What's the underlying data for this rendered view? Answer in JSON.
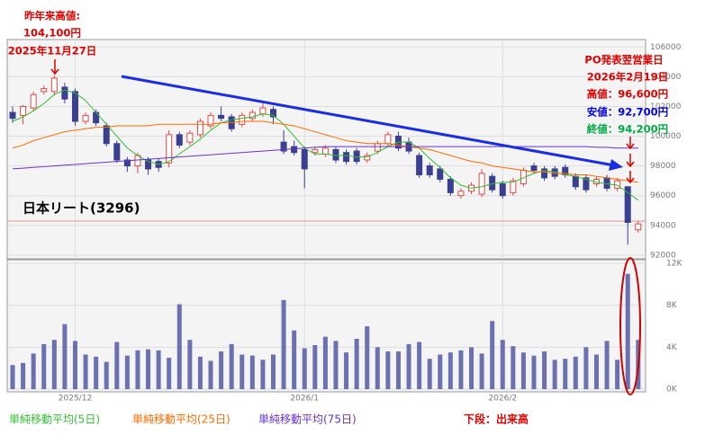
{
  "chart_data": [
    {
      "type": "candlestick",
      "title": "日本リート(3296)",
      "ylim": [
        91750,
        106500
      ],
      "yticks": [
        92000,
        94000,
        96000,
        98000,
        100000,
        102000,
        104000,
        106000
      ],
      "grid": true,
      "up_color": "#e04848",
      "down_color": "#3b3f8f",
      "open": [
        101600,
        101400,
        101900,
        103000,
        103000,
        103300,
        103000,
        101000,
        101600,
        100700,
        99500,
        98400,
        98000,
        98400,
        98300,
        98200,
        100100,
        99600,
        100100,
        100700,
        101400,
        101300,
        100800,
        101200,
        101500,
        101800,
        99600,
        99300,
        99100,
        98900,
        98800,
        99100,
        98900,
        99000,
        98400,
        99000,
        99500,
        100000,
        99600,
        98700,
        98000,
        97800,
        97100,
        96000,
        96300,
        96100,
        97300,
        96800,
        96200,
        96800,
        98000,
        97800,
        97800,
        97900,
        97300,
        97200,
        96800,
        97200,
        96500,
        96600,
        93700
      ],
      "high": [
        102000,
        102100,
        103000,
        103400,
        104100,
        103600,
        103200,
        101600,
        101800,
        100900,
        99700,
        98600,
        98900,
        98600,
        98500,
        100400,
        100300,
        100400,
        101200,
        101600,
        102000,
        101500,
        101600,
        101800,
        102200,
        102000,
        100400,
        99700,
        99300,
        99300,
        99400,
        99300,
        99100,
        99200,
        98900,
        99700,
        100300,
        100300,
        99900,
        98900,
        98200,
        98000,
        97300,
        96500,
        96900,
        97800,
        97500,
        97000,
        97200,
        97900,
        98200,
        98000,
        98000,
        98100,
        97500,
        97400,
        97300,
        97400,
        97200,
        96600,
        94300
      ],
      "low": [
        100900,
        100800,
        101700,
        102800,
        102800,
        102200,
        100700,
        100800,
        100700,
        99300,
        98200,
        97600,
        97500,
        97400,
        97600,
        97900,
        99200,
        99400,
        99900,
        100500,
        101000,
        100300,
        100600,
        101000,
        101300,
        100800,
        98800,
        98700,
        96500,
        98700,
        98600,
        98200,
        98100,
        98100,
        98200,
        98800,
        99300,
        99000,
        98800,
        97200,
        97200,
        96900,
        96000,
        95800,
        96100,
        95900,
        96200,
        95800,
        96000,
        96600,
        97500,
        97000,
        97100,
        97200,
        96400,
        96200,
        96600,
        96300,
        96300,
        92700,
        93500
      ],
      "close": [
        101200,
        102000,
        102800,
        103200,
        103900,
        102500,
        101000,
        101400,
        100900,
        99500,
        98400,
        98000,
        98700,
        97800,
        97900,
        100100,
        99400,
        100200,
        101000,
        101400,
        101200,
        100500,
        101400,
        101600,
        101900,
        101300,
        99000,
        98900,
        97800,
        99100,
        99200,
        98400,
        98300,
        98300,
        98700,
        99500,
        100100,
        99200,
        99000,
        97400,
        97400,
        97100,
        96200,
        96300,
        96700,
        97500,
        96400,
        96000,
        97000,
        97700,
        97700,
        97200,
        97300,
        97400,
        96600,
        96400,
        97100,
        96500,
        97000,
        94200,
        94100
      ],
      "series": [
        {
          "name": "単純移動平均(5日)",
          "color": "#33bb33",
          "values": [
            101000,
            101300,
            101700,
            102200,
            102800,
            103100,
            102900,
            102400,
            101600,
            100800,
            100000,
            99200,
            98700,
            98300,
            98100,
            98300,
            98800,
            99300,
            99800,
            100400,
            100900,
            101100,
            101200,
            101300,
            101500,
            101400,
            100800,
            100000,
            99200,
            98800,
            98800,
            98700,
            98700,
            98600,
            98600,
            98900,
            99300,
            99600,
            99600,
            99200,
            98500,
            97900,
            97200,
            96700,
            96500,
            96600,
            96800,
            96900,
            96900,
            97200,
            97500,
            97700,
            97600,
            97400,
            97300,
            97100,
            96900,
            96800,
            96700,
            96200,
            95700
          ]
        },
        {
          "name": "単純移動平均(25日)",
          "color": "#ff6a00",
          "values": [
            99200,
            99400,
            99700,
            99900,
            100100,
            100300,
            100400,
            100500,
            100600,
            100600,
            100700,
            100700,
            100700,
            100700,
            100800,
            100800,
            100800,
            100800,
            100800,
            100800,
            100900,
            100900,
            101000,
            101000,
            101000,
            100900,
            100800,
            100700,
            100500,
            100300,
            100100,
            99900,
            99700,
            99600,
            99500,
            99500,
            99500,
            99400,
            99300,
            99200,
            99100,
            98900,
            98700,
            98500,
            98300,
            98200,
            98000,
            97900,
            97800,
            97700,
            97600,
            97600,
            97500,
            97500,
            97400,
            97400,
            97300,
            97200,
            97100,
            97000,
            96900
          ]
        },
        {
          "name": "単純移動平均(75日)",
          "color": "#6633cc",
          "values": [
            97800,
            97850,
            97900,
            97950,
            98000,
            98050,
            98100,
            98150,
            98200,
            98250,
            98300,
            98350,
            98400,
            98450,
            98500,
            98550,
            98600,
            98650,
            98700,
            98750,
            98800,
            98850,
            98900,
            98950,
            99000,
            99050,
            99100,
            99150,
            99200,
            99250,
            99300,
            99300,
            99300,
            99300,
            99300,
            99300,
            99300,
            99300,
            99300,
            99300,
            99300,
            99300,
            99300,
            99300,
            99300,
            99300,
            99300,
            99300,
            99300,
            99300,
            99300,
            99300,
            99300,
            99300,
            99300,
            99300,
            99250,
            99250,
            99200,
            99200,
            99200
          ]
        }
      ],
      "annotations": [
        {
          "text": "昨年来高値:",
          "color": "#e00000"
        },
        {
          "text": "104,100円",
          "color": "#e00000"
        },
        {
          "text": "2025年11月27日",
          "color": "#e00000"
        },
        {
          "text": "PO発表翌営業日",
          "color": "#e00000"
        },
        {
          "text": "2026年2月19日",
          "color": "#e00000"
        },
        {
          "text": "高値：96,600円",
          "color": "#e00000"
        },
        {
          "text": "安値：92,700円",
          "color": "#0000ee"
        },
        {
          "text": "終値：94,200円",
          "color": "#00aa44"
        }
      ]
    },
    {
      "type": "bar",
      "title": "下段：出来高",
      "title_color": "#e00000",
      "color": "#6b70b0",
      "categories": [
        null,
        null,
        null,
        null,
        null,
        null,
        "2025/12",
        null,
        null,
        null,
        null,
        null,
        null,
        null,
        null,
        null,
        null,
        null,
        null,
        null,
        null,
        null,
        null,
        null,
        null,
        null,
        null,
        null,
        "2026/1",
        null,
        null,
        null,
        null,
        null,
        null,
        null,
        null,
        null,
        null,
        null,
        null,
        null,
        null,
        null,
        null,
        null,
        null,
        "2026/2",
        null,
        null,
        null,
        null,
        null,
        null,
        null,
        null,
        null,
        null,
        null,
        null,
        null
      ],
      "values": [
        2300,
        2500,
        3400,
        4300,
        4700,
        6200,
        4600,
        3300,
        3100,
        2600,
        4500,
        3200,
        3700,
        3800,
        3700,
        3000,
        8100,
        4700,
        3100,
        2700,
        3600,
        4300,
        3300,
        3200,
        2800,
        3300,
        8500,
        5600,
        3900,
        4200,
        5000,
        4600,
        3500,
        4800,
        6000,
        4000,
        3600,
        3600,
        4300,
        4500,
        2900,
        3300,
        3500,
        3700,
        4000,
        3400,
        6500,
        4700,
        4100,
        3500,
        3200,
        3600,
        2800,
        2900,
        3100,
        4000,
        3300,
        4600,
        2800,
        11000,
        4700
      ],
      "ylim": [
        0,
        12000
      ],
      "yticks": [
        {
          "value": 0,
          "label": "0K"
        },
        {
          "value": 4000,
          "label": "4K"
        },
        {
          "value": 8000,
          "label": "8K"
        },
        {
          "value": 12000,
          "label": "12K"
        }
      ],
      "grid": true
    }
  ]
}
